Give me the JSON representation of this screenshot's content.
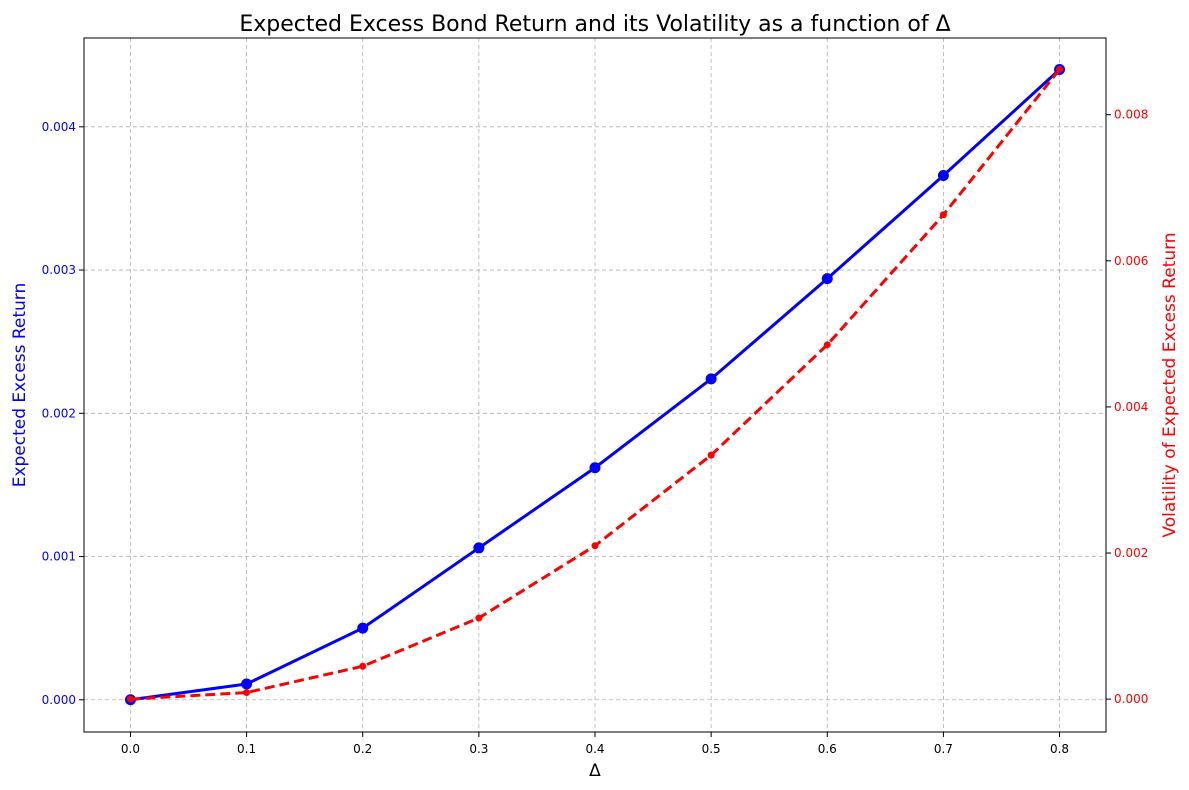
{
  "chart_data": {
    "type": "line",
    "title": "Expected Excess Bond Return and its Volatility as a function of Δ",
    "xlabel": "Δ",
    "ylabel_left": "Expected Excess Return",
    "ylabel_right": "Volatility of Expected Excess Return",
    "x": [
      0.0,
      0.1,
      0.2,
      0.3,
      0.4,
      0.5,
      0.6,
      0.7,
      0.8
    ],
    "x_tick_labels": [
      "0.0",
      "0.1",
      "0.2",
      "0.3",
      "0.4",
      "0.5",
      "0.6",
      "0.7",
      "0.8"
    ],
    "xlim": [
      -0.04,
      0.84
    ],
    "ylim_left": [
      -0.000225,
      0.00462
    ],
    "ylim_right": [
      -0.00045,
      0.00905
    ],
    "left_ticks": [
      0.0,
      0.001,
      0.002,
      0.003,
      0.004
    ],
    "left_tick_labels": [
      "0.000",
      "0.001",
      "0.002",
      "0.003",
      "0.004"
    ],
    "right_ticks": [
      0.0,
      0.002,
      0.004,
      0.006,
      0.008
    ],
    "right_tick_labels": [
      "0.000",
      "0.002",
      "0.004",
      "0.006",
      "0.008"
    ],
    "grid": true,
    "series": [
      {
        "axis": "left",
        "color": "#0000ff",
        "style": "solid",
        "marker": "circle-large",
        "values": [
          0.0,
          0.00011,
          0.0005,
          0.00106,
          0.00162,
          0.00224,
          0.00294,
          0.00366,
          0.0044
        ]
      },
      {
        "axis": "right",
        "color": "#ff0000",
        "style": "dashed",
        "marker": "circle-small",
        "values": [
          0.0,
          9e-05,
          0.00045,
          0.00111,
          0.0021,
          0.00334,
          0.00485,
          0.00663,
          0.00862
        ]
      }
    ]
  }
}
